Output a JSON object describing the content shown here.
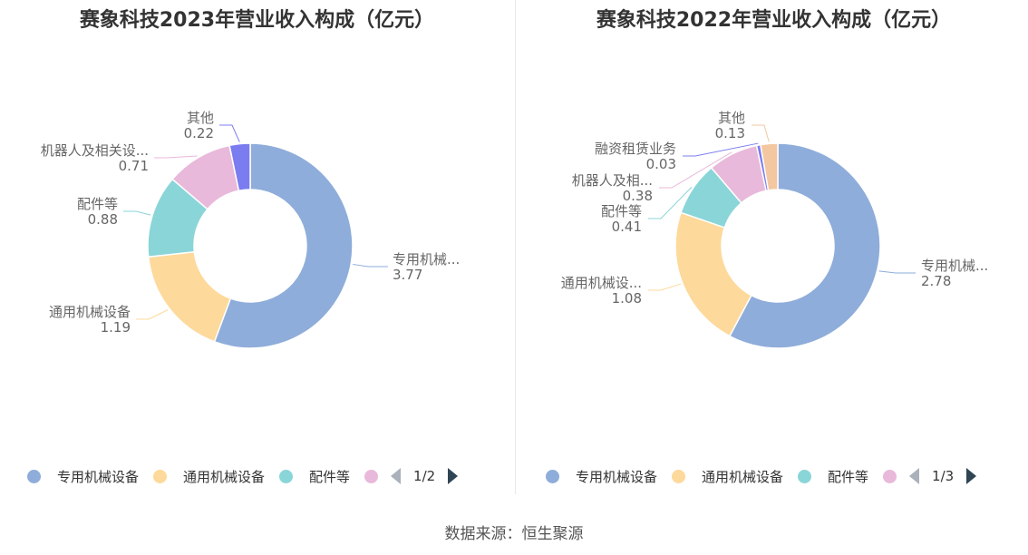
{
  "colors": [
    "#8eadda",
    "#fdd99b",
    "#8ad5d8",
    "#e8b9da",
    "#7b7cf0",
    "#f3c7a0"
  ],
  "chart_data": [
    {
      "type": "pie",
      "title": "赛象科技2023年营业收入构成（亿元）",
      "slices": [
        {
          "name": "专用机械设备",
          "label": "专用机械...",
          "value": 3.77,
          "value_label": "3.77"
        },
        {
          "name": "通用机械设备",
          "label": "通用机械设备",
          "value": 1.19,
          "value_label": "1.19"
        },
        {
          "name": "配件等",
          "label": "配件等",
          "value": 0.88,
          "value_label": "0.88"
        },
        {
          "name": "机器人及相关设备",
          "label": "机器人及相关设...",
          "value": 0.71,
          "value_label": "0.71"
        },
        {
          "name": "其他",
          "label": "其他",
          "value": 0.22,
          "value_label": "0.22"
        }
      ],
      "legend": {
        "items": [
          "专用机械设备",
          "通用机械设备",
          "配件等"
        ],
        "page": "1/2"
      }
    },
    {
      "type": "pie",
      "title": "赛象科技2022年营业收入构成（亿元）",
      "slices": [
        {
          "name": "专用机械设备",
          "label": "专用机械...",
          "value": 2.78,
          "value_label": "2.78"
        },
        {
          "name": "通用机械设备",
          "label": "通用机械设...",
          "value": 1.08,
          "value_label": "1.08"
        },
        {
          "name": "配件等",
          "label": "配件等",
          "value": 0.41,
          "value_label": "0.41"
        },
        {
          "name": "机器人及相关设备",
          "label": "机器人及相...",
          "value": 0.38,
          "value_label": "0.38"
        },
        {
          "name": "融资租赁业务",
          "label": "融资租赁业务",
          "value": 0.03,
          "value_label": "0.03"
        },
        {
          "name": "其他",
          "label": "其他",
          "value": 0.13,
          "value_label": "0.13"
        }
      ],
      "legend": {
        "items": [
          "专用机械设备",
          "通用机械设备",
          "配件等"
        ],
        "page": "1/3"
      }
    }
  ],
  "source": "数据来源：恒生聚源"
}
